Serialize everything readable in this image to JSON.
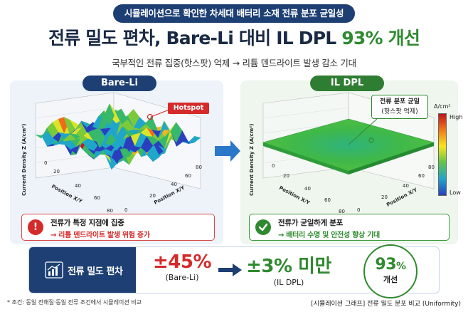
{
  "header": {
    "pill": "시뮬레이션으로 확인한 차세대 배터리 소재 전류 분포 균일성",
    "title_main": "전류 밀도 편차, Bare-Li 대비 IL DPL ",
    "title_accent": "93% 개선",
    "subtitle": "국부적인 전류 집중(핫스팟) 억제 → 리튬 덴드라이트 발생 감소 기대"
  },
  "panels": {
    "left": {
      "tag": "Bare-Li",
      "z_label": "Current Density Z (A/cm²)",
      "x_label": "Position X/Y",
      "y_label": "Position X/Y",
      "ticks_a": [
        "0",
        "20",
        "40",
        "60",
        "80"
      ],
      "ticks_b": [
        "0",
        "20",
        "40",
        "60",
        "80"
      ],
      "hotspot": "Hotspot",
      "info_title": "전류가 특정 지점에 집중",
      "info_detail": "→ 리튬 덴드라이트 발생 위험 증가",
      "info_icon": "exclamation-icon"
    },
    "right": {
      "tag": "IL DPL",
      "z_label": "Current Density Z (A/cm²)",
      "x_label": "Position X/Y",
      "y_label": "Position X/Y",
      "ticks_a": [
        "0",
        "20",
        "40",
        "60",
        "80"
      ],
      "ticks_b": [
        "0",
        "20",
        "40",
        "60",
        "80"
      ],
      "callout_line1": "전류 분포 균일",
      "callout_line2": "(핫스팟 억제)",
      "colorbar_unit": "A/cm²",
      "colorbar_high": "High",
      "colorbar_low": "Low",
      "info_title": "전류가 균일하게 분포",
      "info_detail": "→ 배터리 수명 및 안전성 향상 기대",
      "info_icon": "check-icon"
    }
  },
  "summary": {
    "label": "전류 밀도 편차",
    "bare_value": "±45%",
    "bare_name": "(Bare-Li)",
    "il_value": "±3% 미만",
    "il_name": "(IL DPL)",
    "improvement_number": "93",
    "improvement_unit": "%",
    "improvement_label": "개선"
  },
  "footnotes": {
    "left": "* 조건: 동일 전해질·동일 전류 조건에서 시뮬레이션 비교",
    "right": "[시뮬레이션 그래프] 전류 밀도 분포 비교 (Uniformity)"
  },
  "colors": {
    "navy": "#1d3f73",
    "green": "#2f8a2f",
    "red": "#d52a2a"
  }
}
